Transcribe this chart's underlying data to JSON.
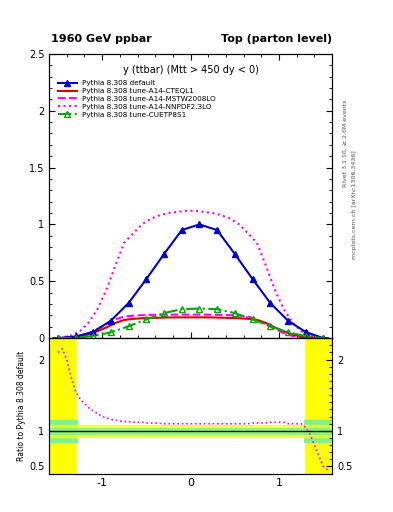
{
  "title_left": "1960 GeV ppbar",
  "title_right": "Top (parton level)",
  "subtitle": "y (ttbar) (Mtt > 450 dy < 0)",
  "ylabel_ratio": "Ratio to Pythia 8.308 default",
  "right_label_top": "Rivet 3.1.10, ≥ 2.6M events",
  "right_label_bottom": "mcplots.cern.ch [arXiv:1306.3436]",
  "xlim": [
    -1.6,
    1.6
  ],
  "ylim_main": [
    0,
    2.5
  ],
  "ylim_ratio": [
    0.4,
    2.3
  ],
  "legend_labels": [
    "Pythia 8.308 default",
    "Pythia 8.308 tune-A14-CTEQL1",
    "Pythia 8.308 tune-A14-MSTW2008LO",
    "Pythia 8.308 tune-A14-NNPDF2.3LO",
    "Pythia 8.308 tune-CUETP8S1"
  ],
  "blue_x": [
    -1.5,
    -1.3,
    -1.1,
    -0.9,
    -0.7,
    -0.5,
    -0.3,
    -0.1,
    0.1,
    0.3,
    0.5,
    0.7,
    0.9,
    1.1,
    1.3,
    1.5
  ],
  "blue_y": [
    0.0,
    0.015,
    0.055,
    0.155,
    0.31,
    0.52,
    0.74,
    0.95,
    1.0,
    0.95,
    0.74,
    0.52,
    0.31,
    0.155,
    0.055,
    0.0
  ],
  "red_x": [
    -1.55,
    -1.45,
    -1.35,
    -1.25,
    -1.15,
    -1.05,
    -0.95,
    -0.85,
    -0.75,
    -0.65,
    -0.55,
    -0.45,
    -0.35,
    -0.25,
    -0.15,
    -0.05,
    0.05,
    0.15,
    0.25,
    0.35,
    0.45,
    0.55,
    0.65,
    0.75,
    0.85,
    0.95,
    1.05,
    1.15,
    1.25,
    1.35,
    1.45,
    1.55
  ],
  "red_y": [
    0.0,
    0.002,
    0.007,
    0.015,
    0.033,
    0.062,
    0.095,
    0.135,
    0.16,
    0.17,
    0.175,
    0.178,
    0.18,
    0.182,
    0.183,
    0.183,
    0.183,
    0.183,
    0.182,
    0.18,
    0.178,
    0.175,
    0.17,
    0.16,
    0.135,
    0.095,
    0.062,
    0.033,
    0.015,
    0.007,
    0.002,
    0.0
  ],
  "pinkd_x": [
    -1.55,
    -1.45,
    -1.35,
    -1.25,
    -1.15,
    -1.05,
    -0.95,
    -0.85,
    -0.75,
    -0.65,
    -0.55,
    -0.45,
    -0.35,
    -0.25,
    -0.15,
    -0.05,
    0.05,
    0.15,
    0.25,
    0.35,
    0.45,
    0.55,
    0.65,
    0.75,
    0.85,
    0.95,
    1.05,
    1.15,
    1.25,
    1.35,
    1.45,
    1.55
  ],
  "pinkd_y": [
    0.0,
    0.003,
    0.009,
    0.02,
    0.045,
    0.082,
    0.122,
    0.165,
    0.19,
    0.198,
    0.202,
    0.205,
    0.206,
    0.207,
    0.207,
    0.207,
    0.207,
    0.207,
    0.206,
    0.205,
    0.202,
    0.198,
    0.19,
    0.165,
    0.122,
    0.082,
    0.045,
    0.02,
    0.009,
    0.003,
    0.001,
    0.0
  ],
  "pinkdot_x": [
    -1.55,
    -1.45,
    -1.35,
    -1.25,
    -1.15,
    -1.05,
    -0.95,
    -0.85,
    -0.75,
    -0.65,
    -0.55,
    -0.45,
    -0.35,
    -0.25,
    -0.15,
    -0.05,
    0.05,
    0.15,
    0.25,
    0.35,
    0.45,
    0.55,
    0.65,
    0.75,
    0.85,
    0.95,
    1.05,
    1.15,
    1.25,
    1.35,
    1.45,
    1.55
  ],
  "pinkdot_y": [
    0.0,
    0.008,
    0.025,
    0.062,
    0.14,
    0.26,
    0.43,
    0.64,
    0.84,
    0.92,
    1.0,
    1.05,
    1.08,
    1.1,
    1.11,
    1.12,
    1.12,
    1.11,
    1.1,
    1.08,
    1.05,
    1.0,
    0.92,
    0.84,
    0.64,
    0.43,
    0.26,
    0.14,
    0.062,
    0.025,
    0.008,
    0.0
  ],
  "green_x": [
    -1.5,
    -1.3,
    -1.1,
    -0.9,
    -0.7,
    -0.5,
    -0.3,
    -0.1,
    0.1,
    0.3,
    0.5,
    0.7,
    0.9,
    1.1,
    1.3,
    1.5
  ],
  "green_y": [
    0.0,
    0.004,
    0.018,
    0.052,
    0.105,
    0.165,
    0.22,
    0.255,
    0.26,
    0.255,
    0.22,
    0.165,
    0.105,
    0.052,
    0.018,
    0.0
  ],
  "ratio_nnpdf_x": [
    -1.5,
    -1.45,
    -1.4,
    -1.35,
    -1.3,
    -1.25,
    -1.2,
    -1.15,
    -1.1,
    -1.05,
    -1.0,
    -0.95,
    -0.9,
    -0.85,
    -0.8,
    -0.75,
    -0.7,
    -0.65,
    -0.6,
    -0.55,
    -0.5,
    -0.4,
    -0.3,
    -0.2,
    -0.1,
    0.0,
    0.1,
    0.2,
    0.3,
    0.4,
    0.5,
    0.6,
    0.65,
    0.7,
    0.75,
    0.8,
    0.85,
    0.9,
    0.95,
    1.0,
    1.05,
    1.1,
    1.15,
    1.2,
    1.25,
    1.3,
    1.35,
    1.4,
    1.45,
    1.5,
    1.55
  ],
  "ratio_nnpdf_y": [
    2.1,
    2.15,
    2.0,
    1.75,
    1.55,
    1.45,
    1.38,
    1.32,
    1.28,
    1.24,
    1.2,
    1.18,
    1.16,
    1.15,
    1.14,
    1.13,
    1.13,
    1.12,
    1.12,
    1.12,
    1.11,
    1.11,
    1.1,
    1.1,
    1.1,
    1.1,
    1.1,
    1.1,
    1.1,
    1.1,
    1.1,
    1.1,
    1.1,
    1.11,
    1.11,
    1.11,
    1.11,
    1.12,
    1.12,
    1.12,
    1.12,
    1.1,
    1.1,
    1.1,
    1.1,
    1.05,
    0.95,
    0.8,
    0.65,
    0.5,
    0.45
  ]
}
